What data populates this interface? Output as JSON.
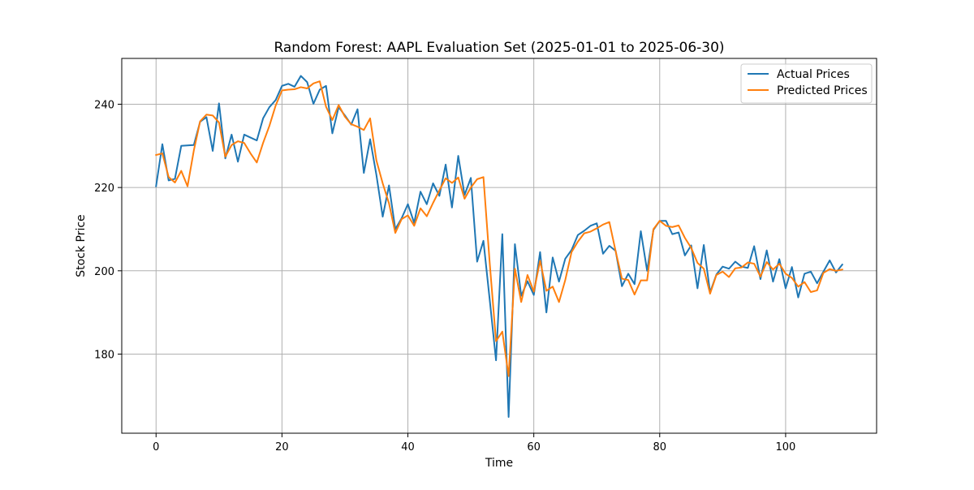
{
  "chart_data": {
    "type": "line",
    "title": "Random Forest: AAPL Evaluation Set (2025-01-01 to 2025-06-30)",
    "xlabel": "Time",
    "ylabel": "Stock Price",
    "xlim": [
      -5.45,
      114.45
    ],
    "ylim": [
      161.0,
      251.0
    ],
    "xticks": [
      0,
      20,
      40,
      60,
      80,
      100
    ],
    "yticks": [
      180,
      200,
      220,
      240
    ],
    "grid": true,
    "legend_position": "upper right",
    "x": [
      0,
      1,
      2,
      3,
      4,
      5,
      6,
      7,
      8,
      9,
      10,
      11,
      12,
      13,
      14,
      15,
      16,
      17,
      18,
      19,
      20,
      21,
      22,
      23,
      24,
      25,
      26,
      27,
      28,
      29,
      30,
      31,
      32,
      33,
      34,
      35,
      36,
      37,
      38,
      39,
      40,
      41,
      42,
      43,
      44,
      45,
      46,
      47,
      48,
      49,
      50,
      51,
      52,
      53,
      54,
      55,
      56,
      57,
      58,
      59,
      60,
      61,
      62,
      63,
      64,
      65,
      66,
      67,
      68,
      69,
      70,
      71,
      72,
      73,
      74,
      75,
      76,
      77,
      78,
      79,
      80,
      81,
      82,
      83,
      84,
      85,
      86,
      87,
      88,
      89,
      90,
      91,
      92,
      93,
      94,
      95,
      96,
      97,
      98,
      99,
      100,
      101,
      102,
      103,
      104,
      105,
      106,
      107,
      108,
      109
    ],
    "series": [
      {
        "name": "Actual Prices",
        "color": "#1f77b4",
        "values": [
          220.3,
          230.4,
          221.7,
          222.1,
          230.0,
          230.1,
          230.2,
          235.8,
          236.9,
          228.8,
          240.2,
          227.0,
          232.7,
          226.2,
          232.7,
          232.0,
          231.3,
          236.6,
          239.3,
          241.0,
          244.4,
          244.9,
          244.2,
          246.8,
          245.3,
          240.1,
          243.5,
          244.4,
          233.0,
          239.3,
          237.3,
          235.1,
          238.8,
          223.5,
          231.6,
          223.0,
          213.0,
          220.5,
          210.0,
          212.6,
          216.0,
          211.5,
          219.0,
          216.0,
          221.0,
          218.0,
          225.5,
          215.2,
          227.6,
          218.2,
          222.3,
          202.2,
          207.2,
          193.0,
          178.5,
          208.8,
          164.9,
          206.4,
          194.0,
          197.5,
          194.2,
          204.5,
          190.0,
          203.2,
          197.4,
          202.9,
          205.0,
          208.6,
          209.6,
          210.8,
          211.4,
          204.1,
          206.0,
          204.8,
          196.3,
          199.3,
          196.8,
          209.5,
          200.0,
          209.8,
          212.0,
          212.0,
          208.8,
          209.2,
          203.7,
          206.1,
          195.8,
          206.2,
          194.8,
          199.1,
          201.0,
          200.5,
          202.2,
          201.0,
          200.7,
          205.9,
          198.0,
          204.9,
          197.4,
          202.8,
          195.8,
          200.9,
          193.6,
          199.3,
          199.8,
          197.0,
          199.8,
          202.5,
          199.6,
          201.5
        ]
      },
      {
        "name": "Predicted Prices",
        "color": "#ff7f0e",
        "values": [
          227.8,
          228.2,
          222.5,
          221.2,
          224.0,
          220.3,
          228.9,
          235.9,
          237.5,
          237.3,
          235.6,
          227.4,
          230.2,
          231.1,
          230.7,
          228.2,
          226.0,
          230.7,
          234.8,
          239.7,
          243.3,
          243.5,
          243.6,
          244.1,
          243.8,
          245.0,
          245.5,
          239.4,
          236.2,
          239.8,
          237.0,
          235.2,
          234.6,
          233.8,
          236.6,
          226.5,
          221.0,
          216.2,
          209.1,
          212.4,
          213.3,
          210.8,
          215.0,
          213.1,
          216.3,
          219.3,
          222.2,
          221.1,
          222.4,
          217.3,
          220.0,
          222.0,
          222.5,
          201.8,
          183.1,
          185.4,
          174.7,
          200.5,
          192.5,
          199.0,
          195.0,
          202.4,
          195.2,
          196.2,
          192.5,
          197.8,
          204.5,
          207.0,
          209.0,
          209.4,
          210.2,
          211.1,
          211.7,
          204.7,
          198.1,
          197.8,
          194.3,
          197.7,
          197.7,
          210.0,
          212.0,
          210.8,
          210.5,
          210.9,
          207.9,
          205.5,
          201.9,
          200.5,
          194.5,
          199.0,
          199.8,
          198.5,
          200.6,
          200.8,
          202.0,
          201.7,
          198.6,
          202.1,
          200.3,
          201.7,
          199.3,
          198.3,
          196.2,
          197.3,
          194.9,
          195.3,
          199.5,
          200.4,
          200.0,
          200.3
        ]
      }
    ]
  }
}
